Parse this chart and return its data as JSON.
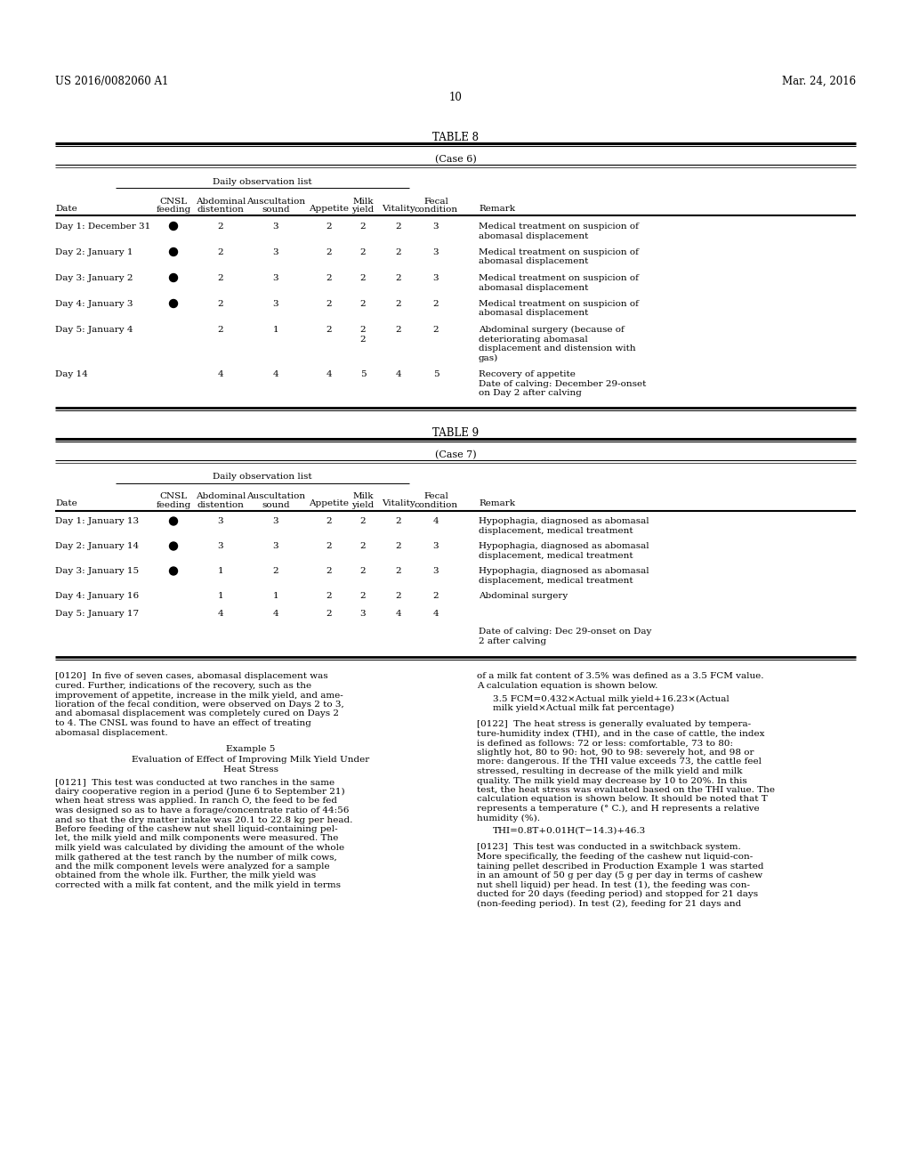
{
  "header_left": "US 2016/0082060 A1",
  "header_right": "Mar. 24, 2016",
  "page_number": "10",
  "table8": {
    "title": "TABLE 8",
    "case": "(Case 6)",
    "subtitle": "Daily observation list",
    "rows": [
      {
        "date": "Day 1: December 31",
        "cnsl": true,
        "abdominal": "2",
        "auscultation": "3",
        "appetite": "2",
        "milk_yield": [
          "2"
        ],
        "vitality": "2",
        "fecal": "3",
        "remark": [
          "Medical treatment on suspicion of",
          "abomasal displacement"
        ]
      },
      {
        "date": "Day 2: January 1",
        "cnsl": true,
        "abdominal": "2",
        "auscultation": "3",
        "appetite": "2",
        "milk_yield": [
          "2"
        ],
        "vitality": "2",
        "fecal": "3",
        "remark": [
          "Medical treatment on suspicion of",
          "abomasal displacement"
        ]
      },
      {
        "date": "Day 3: January 2",
        "cnsl": true,
        "abdominal": "2",
        "auscultation": "3",
        "appetite": "2",
        "milk_yield": [
          "2"
        ],
        "vitality": "2",
        "fecal": "3",
        "remark": [
          "Medical treatment on suspicion of",
          "abomasal displacement"
        ]
      },
      {
        "date": "Day 4: January 3",
        "cnsl": true,
        "abdominal": "2",
        "auscultation": "3",
        "appetite": "2",
        "milk_yield": [
          "2"
        ],
        "vitality": "2",
        "fecal": "2",
        "remark": [
          "Medical treatment on suspicion of",
          "abomasal displacement"
        ]
      },
      {
        "date": "Day 5: January 4",
        "cnsl": false,
        "abdominal": "2",
        "auscultation": "1",
        "appetite": "2",
        "milk_yield": [
          "2",
          "2"
        ],
        "vitality": "2",
        "fecal": "2",
        "remark": [
          "Abdominal surgery (because of",
          "deteriorating abomasal",
          "displacement and distension with",
          "gas)"
        ]
      },
      {
        "date": "Day 14",
        "cnsl": false,
        "abdominal": "4",
        "auscultation": "4",
        "appetite": "4",
        "milk_yield": [
          "5"
        ],
        "vitality": "4",
        "fecal": "5",
        "remark": [
          "Recovery of appetite",
          "Date of calving: December 29-onset",
          "on Day 2 after calving"
        ]
      }
    ]
  },
  "table9": {
    "title": "TABLE 9",
    "case": "(Case 7)",
    "subtitle": "Daily observation list",
    "rows": [
      {
        "date": "Day 1: January 13",
        "cnsl": true,
        "abdominal": "3",
        "auscultation": "3",
        "appetite": "2",
        "milk_yield": [
          "2"
        ],
        "vitality": "2",
        "fecal": "4",
        "remark": [
          "Hypophagia, diagnosed as abomasal",
          "displacement, medical treatment"
        ]
      },
      {
        "date": "Day 2: January 14",
        "cnsl": true,
        "abdominal": "3",
        "auscultation": "3",
        "appetite": "2",
        "milk_yield": [
          "2"
        ],
        "vitality": "2",
        "fecal": "3",
        "remark": [
          "Hypophagia, diagnosed as abomasal",
          "displacement, medical treatment"
        ]
      },
      {
        "date": "Day 3: January 15",
        "cnsl": true,
        "abdominal": "1",
        "auscultation": "2",
        "appetite": "2",
        "milk_yield": [
          "2"
        ],
        "vitality": "2",
        "fecal": "3",
        "remark": [
          "Hypophagia, diagnosed as abomasal",
          "displacement, medical treatment"
        ]
      },
      {
        "date": "Day 4: January 16",
        "cnsl": false,
        "abdominal": "1",
        "auscultation": "1",
        "appetite": "2",
        "milk_yield": [
          "2"
        ],
        "vitality": "2",
        "fecal": "2",
        "remark": [
          "Abdominal surgery"
        ]
      },
      {
        "date": "Day 5: January 17",
        "cnsl": false,
        "abdominal": "4",
        "auscultation": "4",
        "appetite": "2",
        "milk_yield": [
          "3"
        ],
        "vitality": "4",
        "fecal": "4",
        "remark": []
      },
      {
        "date": "",
        "cnsl": false,
        "abdominal": "",
        "auscultation": "",
        "appetite": "",
        "milk_yield": [],
        "vitality": "",
        "fecal": "",
        "remark": [
          "Date of calving: Dec 29-onset on Day",
          "2 after calving"
        ]
      }
    ]
  },
  "paragraph0120": [
    "[0120]  In five of seven cases, abomasal displacement was",
    "cured. Further, indications of the recovery, such as the",
    "improvement of appetite, increase in the milk yield, and ame-",
    "lioration of the fecal condition, were observed on Days 2 to 3,",
    "and abomasal displacement was completely cured on Days 2",
    "to 4. The CNSL was found to have an effect of treating",
    "abomasal displacement."
  ],
  "example5_title": "Example 5",
  "example5_subtitle": [
    "Evaluation of Effect of Improving Milk Yield Under",
    "Heat Stress"
  ],
  "paragraph0121": [
    "[0121]  This test was conducted at two ranches in the same",
    "dairy cooperative region in a period (June 6 to September 21)",
    "when heat stress was applied. In ranch O, the feed to be fed",
    "was designed so as to have a forage/concentrate ratio of 44:56",
    "and so that the dry matter intake was 20.1 to 22.8 kg per head.",
    "Before feeding of the cashew nut shell liquid-containing pel-",
    "let, the milk yield and milk components were measured. The",
    "milk yield was calculated by dividing the amount of the whole",
    "milk gathered at the test ranch by the number of milk cows,",
    "and the milk component levels were analyzed for a sample",
    "obtained from the whole ilk. Further, the milk yield was",
    "corrected with a milk fat content, and the milk yield in terms"
  ],
  "paragraph0121_right": [
    "of a milk fat content of 3.5% was defined as a 3.5 FCM value.",
    "A calculation equation is shown below."
  ],
  "fcm_label": [
    "3.5 FCM=0.432×Actual milk yield+16.23×(Actual",
    "milk yield×Actual milk fat percentage)"
  ],
  "paragraph0122": [
    "[0122]  The heat stress is generally evaluated by tempera-",
    "ture-humidity index (THI), and in the case of cattle, the index",
    "is defined as follows: 72 or less: comfortable, 73 to 80:",
    "slightly hot, 80 to 90: hot, 90 to 98: severely hot, and 98 or",
    "more: dangerous. If the THI value exceeds 73, the cattle feel",
    "stressed, resulting in decrease of the milk yield and milk",
    "quality. The milk yield may decrease by 10 to 20%. In this",
    "test, the heat stress was evaluated based on the THI value. The",
    "calculation equation is shown below. It should be noted that T",
    "represents a temperature (° C.), and H represents a relative",
    "humidity (%)."
  ],
  "thi_label": "THI=0.8T+0.01H(T−14.3)+46.3",
  "paragraph0123": [
    "[0123]  This test was conducted in a switchback system.",
    "More specifically, the feeding of the cashew nut liquid-con-",
    "taining pellet described in Production Example 1 was started",
    "in an amount of 50 g per day (5 g per day in terms of cashew",
    "nut shell liquid) per head. In test (1), the feeding was con-",
    "ducted for 20 days (feeding period) and stopped for 21 days",
    "(non-feeding period). In test (2), feeding for 21 days and"
  ]
}
